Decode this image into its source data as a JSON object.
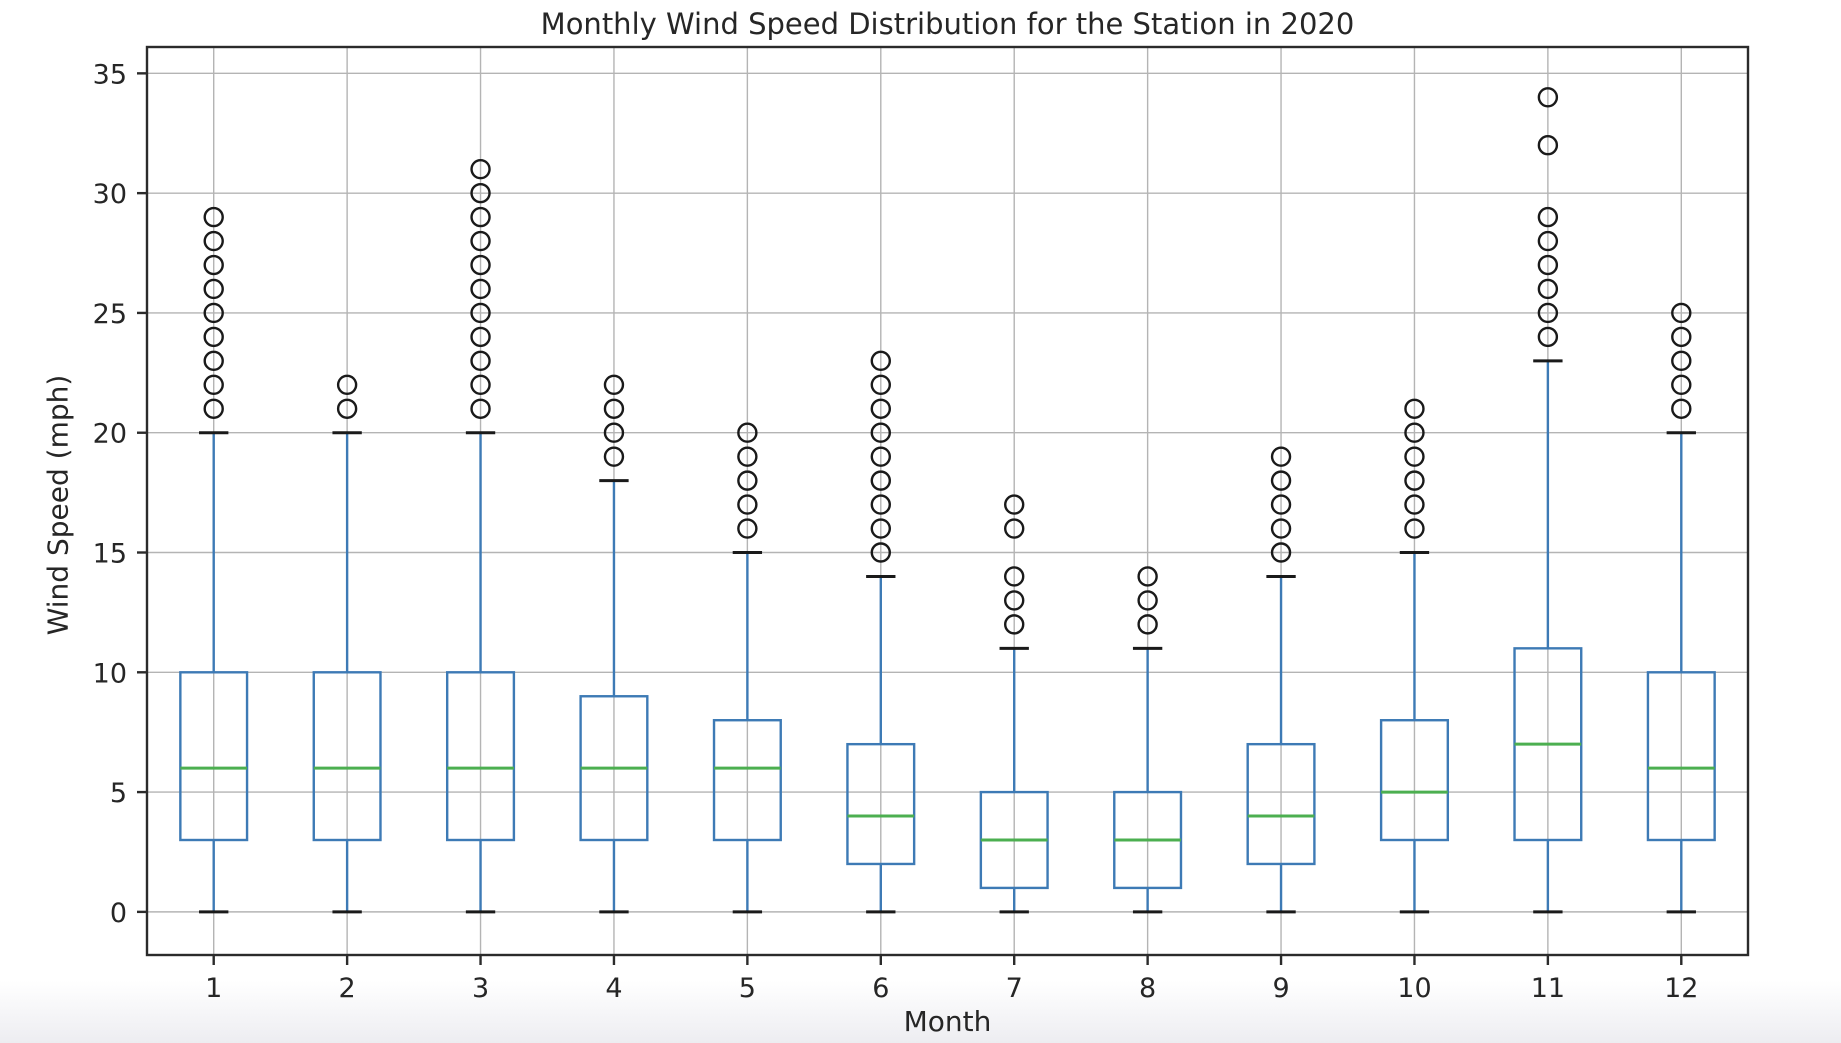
{
  "chart_data": {
    "type": "box",
    "title": "Monthly Wind Speed Distribution for the Station in 2020",
    "xlabel": "Month",
    "ylabel": "Wind Speed (mph)",
    "categories": [
      "1",
      "2",
      "3",
      "4",
      "5",
      "6",
      "7",
      "8",
      "9",
      "10",
      "11",
      "12"
    ],
    "y_ticks": [
      0,
      5,
      10,
      15,
      20,
      25,
      30,
      35
    ],
    "ylim": [
      -1.8,
      36.1
    ],
    "xlim": [
      0.5,
      12.5
    ],
    "grid": "both",
    "legend": "none",
    "series": [
      {
        "month": "1",
        "whisker_low": 0,
        "q1": 3,
        "median": 6,
        "q3": 10,
        "whisker_high": 20,
        "outliers": [
          21,
          22,
          23,
          24,
          25,
          26,
          27,
          28,
          29
        ]
      },
      {
        "month": "2",
        "whisker_low": 0,
        "q1": 3,
        "median": 6,
        "q3": 10,
        "whisker_high": 20,
        "outliers": [
          21,
          22
        ]
      },
      {
        "month": "3",
        "whisker_low": 0,
        "q1": 3,
        "median": 6,
        "q3": 10,
        "whisker_high": 20,
        "outliers": [
          21,
          22,
          23,
          24,
          25,
          26,
          27,
          28,
          29,
          30,
          31
        ]
      },
      {
        "month": "4",
        "whisker_low": 0,
        "q1": 3,
        "median": 6,
        "q3": 9,
        "whisker_high": 18,
        "outliers": [
          19,
          20,
          21,
          22
        ]
      },
      {
        "month": "5",
        "whisker_low": 0,
        "q1": 3,
        "median": 6,
        "q3": 8,
        "whisker_high": 15,
        "outliers": [
          16,
          17,
          18,
          19,
          20
        ]
      },
      {
        "month": "6",
        "whisker_low": 0,
        "q1": 2,
        "median": 4,
        "q3": 7,
        "whisker_high": 14,
        "outliers": [
          15,
          16,
          17,
          18,
          19,
          20,
          21,
          22,
          23
        ]
      },
      {
        "month": "7",
        "whisker_low": 0,
        "q1": 1,
        "median": 3,
        "q3": 5,
        "whisker_high": 11,
        "outliers": [
          12,
          13,
          14,
          16,
          17
        ]
      },
      {
        "month": "8",
        "whisker_low": 0,
        "q1": 1,
        "median": 3,
        "q3": 5,
        "whisker_high": 11,
        "outliers": [
          12,
          13,
          14
        ]
      },
      {
        "month": "9",
        "whisker_low": 0,
        "q1": 2,
        "median": 4,
        "q3": 7,
        "whisker_high": 14,
        "outliers": [
          15,
          16,
          17,
          18,
          19
        ]
      },
      {
        "month": "10",
        "whisker_low": 0,
        "q1": 3,
        "median": 5,
        "q3": 8,
        "whisker_high": 15,
        "outliers": [
          16,
          17,
          18,
          19,
          20,
          21
        ]
      },
      {
        "month": "11",
        "whisker_low": 0,
        "q1": 3,
        "median": 7,
        "q3": 11,
        "whisker_high": 23,
        "outliers": [
          24,
          25,
          26,
          27,
          28,
          29,
          32,
          34
        ]
      },
      {
        "month": "12",
        "whisker_low": 0,
        "q1": 3,
        "median": 6,
        "q3": 10,
        "whisker_high": 20,
        "outliers": [
          21,
          22,
          23,
          24,
          25
        ]
      }
    ],
    "colors": {
      "box": "#3d7ab5",
      "whisker": "#3d7ab5",
      "median": "#4caf50",
      "cap": "#1a1a1a",
      "outlier": "#1a1a1a",
      "grid": "#b4b4b4",
      "spine": "#2b2b2b",
      "text": "#262626"
    }
  }
}
